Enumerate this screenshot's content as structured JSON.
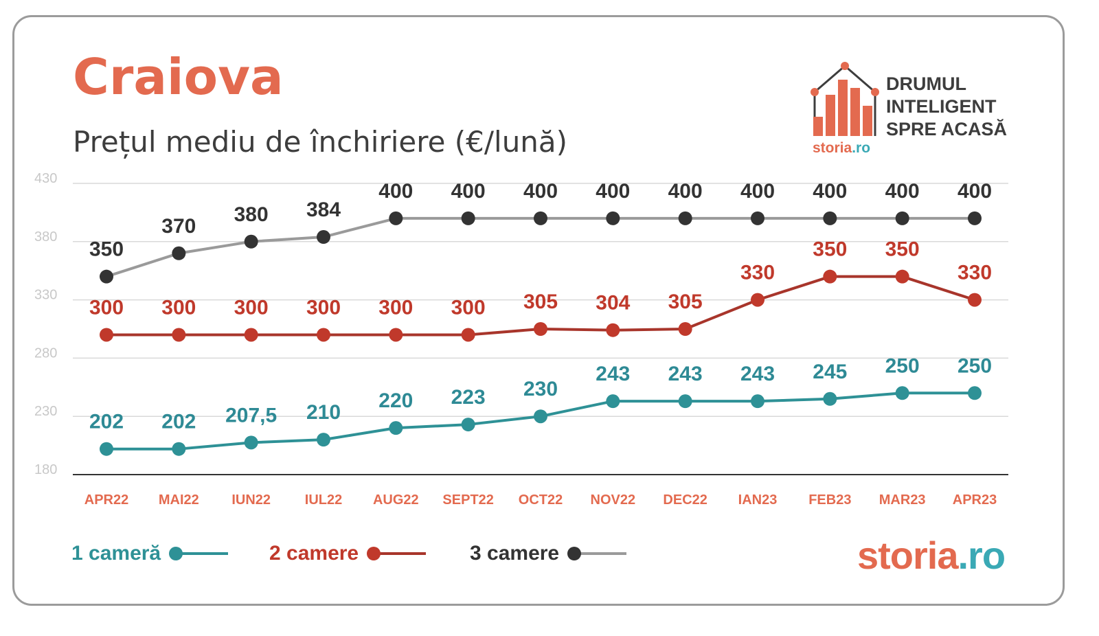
{
  "title": "Craiova",
  "subtitle": "Prețul mediu de închiriere (€/lună)",
  "logo": {
    "text": "DRUMUL\nINTELIGENT\nSPRE ACASĂ",
    "small_brand": "storia",
    "small_tld": ".ro"
  },
  "brand": {
    "name": "storia",
    "tld": ".ro"
  },
  "legend": [
    {
      "label": "1 cameră",
      "color": "#2e9196",
      "dot": "#2e9196"
    },
    {
      "label": "2 camere",
      "color": "#b03a2e",
      "dot": "#c0392b"
    },
    {
      "label": "3 camere",
      "color": "#9a9a9a",
      "dot": "#333333"
    }
  ],
  "chart_data": {
    "type": "line",
    "title": "Craiova",
    "subtitle": "Prețul mediu de închiriere (€/lună)",
    "categories": [
      "APR22",
      "MAI22",
      "IUN22",
      "IUL22",
      "AUG22",
      "SEPT22",
      "OCT22",
      "NOV22",
      "DEC22",
      "IAN23",
      "FEB23",
      "MAR23",
      "APR23"
    ],
    "ylim": [
      180,
      430
    ],
    "yticks": [
      430,
      380,
      330,
      280,
      230,
      180
    ],
    "grid": true,
    "legend_position": "bottom",
    "series": [
      {
        "name": "1 cameră",
        "color": "#2e9196",
        "marker": "#2e9196",
        "label_color": "#2e8a95",
        "values": [
          202,
          202,
          207.5,
          210,
          220,
          223,
          230,
          243,
          243,
          243,
          245,
          250,
          250
        ],
        "labels": [
          "202",
          "202",
          "207,5",
          "210",
          "220",
          "223",
          "230",
          "243",
          "243",
          "243",
          "245",
          "250",
          "250"
        ]
      },
      {
        "name": "2 camere",
        "color": "#a8352b",
        "marker": "#c0392b",
        "label_color": "#c0392b",
        "values": [
          300,
          300,
          300,
          300,
          300,
          300,
          305,
          304,
          305,
          330,
          350,
          350,
          330
        ],
        "labels": [
          "300",
          "300",
          "300",
          "300",
          "300",
          "300",
          "305",
          "304",
          "305",
          "330",
          "350",
          "350",
          "330"
        ]
      },
      {
        "name": "3 camere",
        "color": "#9a9a9a",
        "marker": "#333333",
        "label_color": "#333333",
        "values": [
          350,
          370,
          380,
          384,
          400,
          400,
          400,
          400,
          400,
          400,
          400,
          400,
          400
        ],
        "labels": [
          "350",
          "370",
          "380",
          "384",
          "400",
          "400",
          "400",
          "400",
          "400",
          "400",
          "400",
          "400",
          "400"
        ]
      }
    ],
    "tick_label_color": "#e36a4f",
    "axis_label_color": "#c8c8c8"
  }
}
